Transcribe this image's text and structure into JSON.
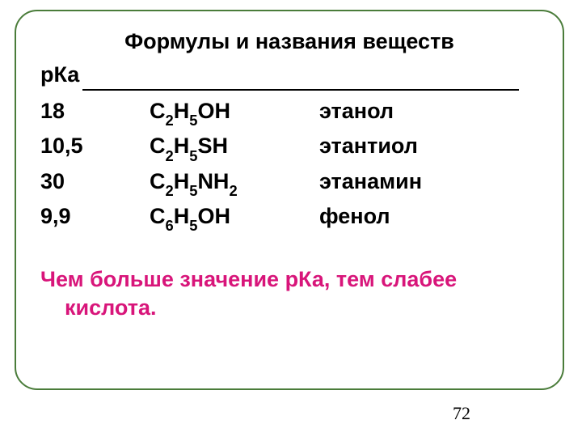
{
  "title": "Формулы и названия веществ",
  "header_label": "рКа",
  "rows": [
    {
      "pka": "18",
      "formula_html": "С<span class=\"sub\">2</span>Н<span class=\"sub\">5</span>ОН",
      "name": "этанол"
    },
    {
      "pka": "10,5",
      "formula_html": "С<span class=\"sub\">2</span>Н<span class=\"sub\">5</span>SН",
      "name": " этантиол"
    },
    {
      "pka": "30",
      "formula_html": "С<span class=\"sub\">2</span>Н<span class=\"sub\">5</span>NН<span class=\"sub\">2</span>",
      "name": "этанамин"
    },
    {
      "pka": "9,9",
      "formula_html": "С<span class=\"sub\">6</span>Н<span class=\"sub\">5</span>ОН",
      "name": "фенол"
    }
  ],
  "note_line1": "Чем больше значение рКа, тем слабее",
  "note_line2": "кислота.",
  "page_number": "72",
  "colors": {
    "border": "#4a7c3a",
    "text": "#000000",
    "note": "#d8157a",
    "background": "#ffffff"
  }
}
